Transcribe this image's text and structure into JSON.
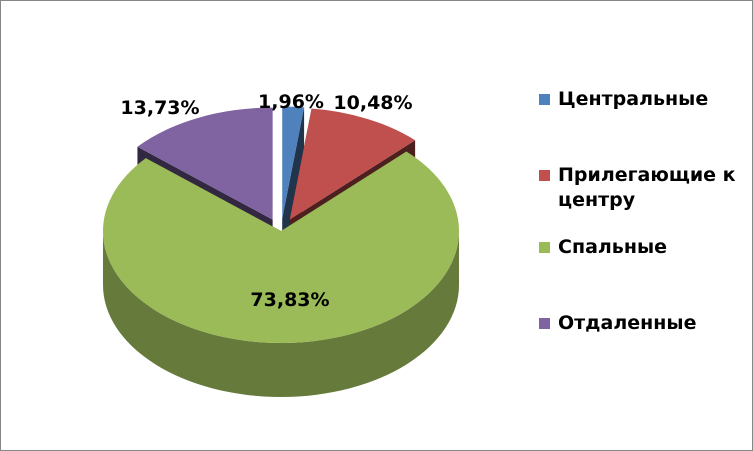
{
  "chart_data": {
    "type": "pie",
    "title": "",
    "style": "3d-exploded",
    "legend_position": "right",
    "categories": [
      "Центральные",
      "Прилегающие к центру",
      "Спальные",
      "Отдаленные"
    ],
    "values": [
      1.96,
      10.48,
      73.83,
      13.73
    ],
    "labels": [
      "1,96%",
      "10,48%",
      "73,83%",
      "13,73%"
    ],
    "colors": [
      "#4F81BD",
      "#C0504D",
      "#9BBB59",
      "#8064A2"
    ]
  }
}
